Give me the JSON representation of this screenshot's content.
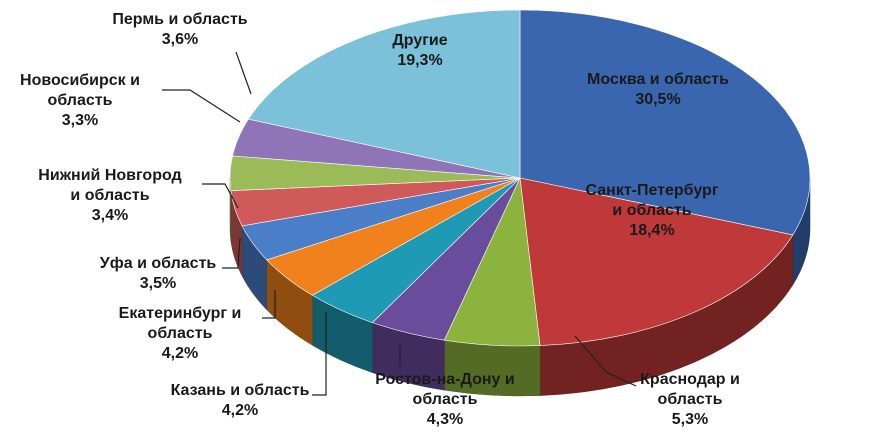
{
  "chart_data": {
    "type": "pie",
    "categories": [
      "Москва и область",
      "Санкт-Петербург\nи область",
      "Краснодар и\nобласть",
      "Ростов-на-Дону и\nобласть",
      "Казань и область",
      "Екатеринбург и\nобласть",
      "Уфа и область",
      "Нижний Новгород\nи область",
      "Новосибирск и\nобласть",
      "Пермь и область",
      "Другие"
    ],
    "values": [
      30.5,
      18.4,
      5.3,
      4.3,
      4.2,
      4.2,
      3.5,
      3.4,
      3.3,
      3.6,
      19.3
    ],
    "value_labels": [
      "30,5%",
      "18,4%",
      "5,3%",
      "4,3%",
      "4,2%",
      "4,2%",
      "3,5%",
      "3,4%",
      "3,3%",
      "3,6%",
      "19,3%"
    ],
    "colors": [
      "#3a66b0",
      "#c0393a",
      "#8db33f",
      "#6a4c9c",
      "#1f9ab5",
      "#f0811c",
      "#4a7ec8",
      "#d05a5a",
      "#9bbb59",
      "#8f74b8",
      "#7cc1da"
    ]
  }
}
